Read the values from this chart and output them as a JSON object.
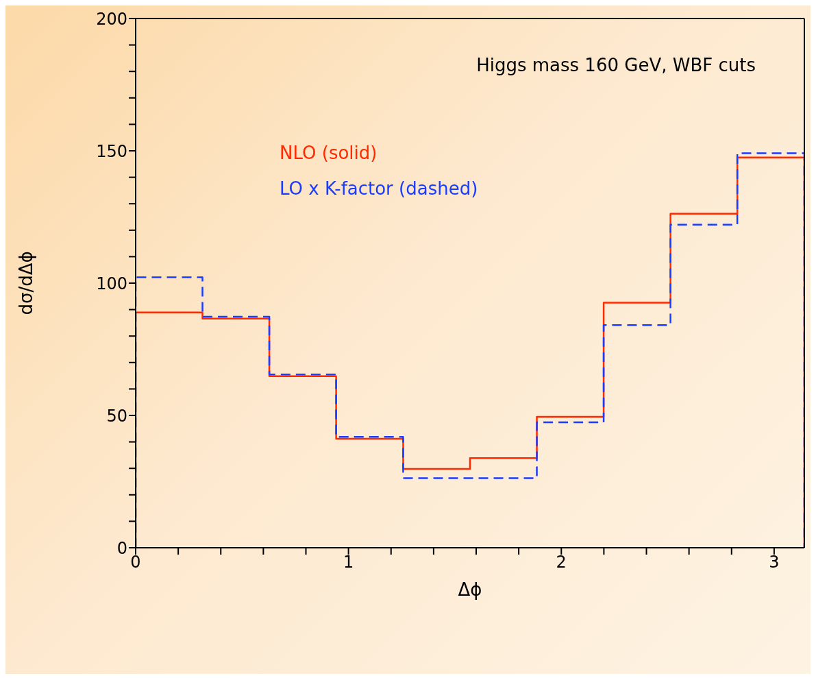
{
  "chart_data": {
    "type": "histogram",
    "xlabel": "Δϕ",
    "ylabel": "dσ/dΔϕ",
    "annotations": [
      "Higgs mass 160 GeV, WBF cuts"
    ],
    "bins": [
      0,
      0.314,
      0.628,
      0.942,
      1.257,
      1.571,
      1.885,
      2.199,
      2.513,
      2.827,
      3.142
    ],
    "series": [
      {
        "name": "NLO (solid)",
        "color": "#ff2a00",
        "line_style": "solid",
        "values": [
          88.9,
          86.6,
          64.8,
          41.2,
          29.8,
          33.9,
          49.5,
          92.6,
          126.2,
          147.5
        ]
      },
      {
        "name": "LO x K-factor (dashed)",
        "color": "#1a3cff",
        "line_style": "dashed",
        "values": [
          102.2,
          87.3,
          65.5,
          41.9,
          26.3,
          26.3,
          47.4,
          84.1,
          122.1,
          149.1
        ]
      }
    ],
    "xlim": [
      0,
      3.142
    ],
    "xticks": [
      0,
      {
        "value": 0.2,
        "label": null
      },
      {
        "value": 0.4,
        "label": null
      },
      {
        "value": 0.6,
        "label": null
      },
      {
        "value": 0.8,
        "label": null
      },
      1,
      {
        "value": 1.2,
        "label": null
      },
      {
        "value": 1.4,
        "label": null
      },
      {
        "value": 1.6,
        "label": null
      },
      {
        "value": 1.8,
        "label": null
      },
      2,
      {
        "value": 2.2,
        "label": null
      },
      {
        "value": 2.4,
        "label": null
      },
      {
        "value": 2.6,
        "label": null
      },
      {
        "value": 2.8,
        "label": null
      },
      3
    ],
    "ylim": [
      0,
      200
    ],
    "yticks": [
      0,
      {
        "value": 10,
        "label": null
      },
      {
        "value": 20,
        "label": null
      },
      {
        "value": 30,
        "label": null
      },
      {
        "value": 40,
        "label": null
      },
      50,
      {
        "value": 60,
        "label": null
      },
      {
        "value": 70,
        "label": null
      },
      {
        "value": 80,
        "label": null
      },
      {
        "value": 90,
        "label": null
      },
      100,
      {
        "value": 110,
        "label": null
      },
      {
        "value": 120,
        "label": null
      },
      {
        "value": 130,
        "label": null
      },
      {
        "value": 140,
        "label": null
      },
      150,
      {
        "value": 160,
        "label": null
      },
      {
        "value": 170,
        "label": null
      },
      {
        "value": 180,
        "label": null
      },
      {
        "value": 190,
        "label": null
      },
      200
    ],
    "legend": "top left",
    "marker": "none"
  }
}
